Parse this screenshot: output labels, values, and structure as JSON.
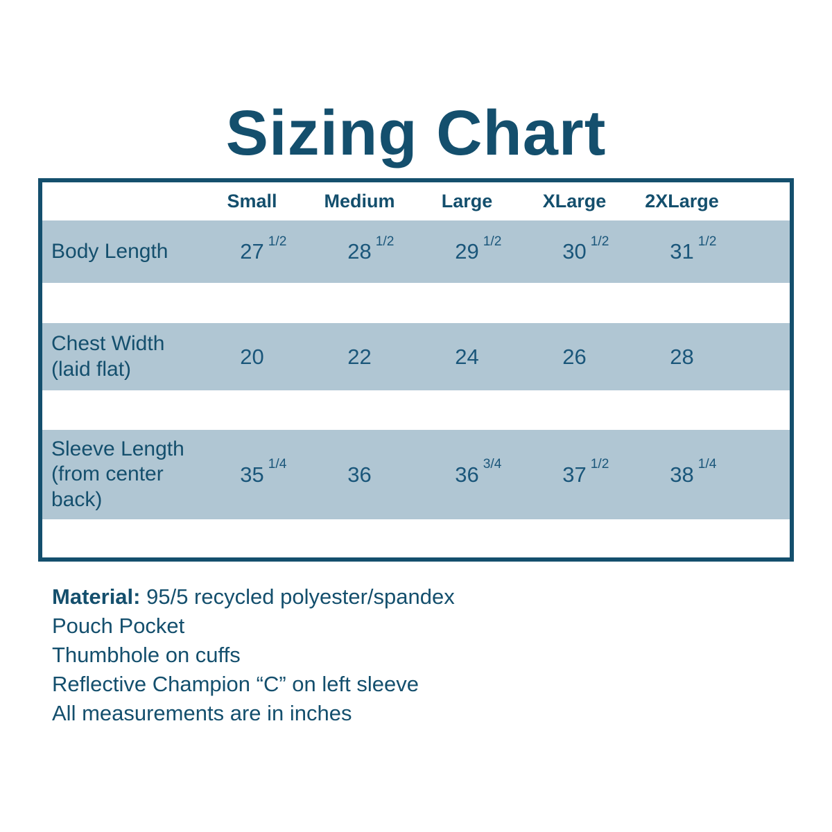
{
  "title": "Sizing Chart",
  "colors": {
    "accent_teal": "#144f6d",
    "row_band_blue": "#b0c6d3",
    "background": "#ffffff"
  },
  "table": {
    "headers": [
      "Small",
      "Medium",
      "Large",
      "XLarge",
      "2XLarge"
    ],
    "rows": [
      {
        "label": "Body Length",
        "cells": [
          {
            "whole": "27",
            "frac": "1/2"
          },
          {
            "whole": "28",
            "frac": "1/2"
          },
          {
            "whole": "29",
            "frac": "1/2"
          },
          {
            "whole": "30",
            "frac": "1/2"
          },
          {
            "whole": "31",
            "frac": "1/2"
          }
        ]
      },
      {
        "label": "Chest Width (laid flat)",
        "cells": [
          {
            "whole": "20"
          },
          {
            "whole": "22"
          },
          {
            "whole": "24"
          },
          {
            "whole": "26"
          },
          {
            "whole": "28"
          }
        ]
      },
      {
        "label": "Sleeve Length (from center back)",
        "cells": [
          {
            "whole": "35",
            "frac": "1/4"
          },
          {
            "whole": "36"
          },
          {
            "whole": "36",
            "frac": "3/4"
          },
          {
            "whole": "37",
            "frac": "1/2"
          },
          {
            "whole": "38",
            "frac": "1/4"
          }
        ]
      }
    ]
  },
  "notes": {
    "material_label": "Material:",
    "material_value": "95/5 recycled polyester/spandex",
    "line2": "Pouch Pocket",
    "line3": "Thumbhole on cuffs",
    "line4": "Reflective Champion “C” on left sleeve",
    "line5": "All measurements are in inches"
  },
  "chart_data": {
    "type": "table",
    "title": "Sizing Chart",
    "columns": [
      "Small",
      "Medium",
      "Large",
      "XLarge",
      "2XLarge"
    ],
    "rows": [
      {
        "label": "Body Length",
        "values": [
          "27 1/2",
          "28 1/2",
          "29 1/2",
          "30 1/2",
          "31 1/2"
        ]
      },
      {
        "label": "Chest Width (laid flat)",
        "values": [
          "20",
          "22",
          "24",
          "26",
          "28"
        ]
      },
      {
        "label": "Sleeve Length (from center back)",
        "values": [
          "35 1/4",
          "36",
          "36 3/4",
          "37 1/2",
          "38 1/4"
        ]
      }
    ],
    "units": "inches",
    "notes": [
      "Material: 95/5 recycled polyester/spandex",
      "Pouch Pocket",
      "Thumbhole on cuffs",
      "Reflective Champion “C” on left sleeve",
      "All measurements are in inches"
    ]
  }
}
